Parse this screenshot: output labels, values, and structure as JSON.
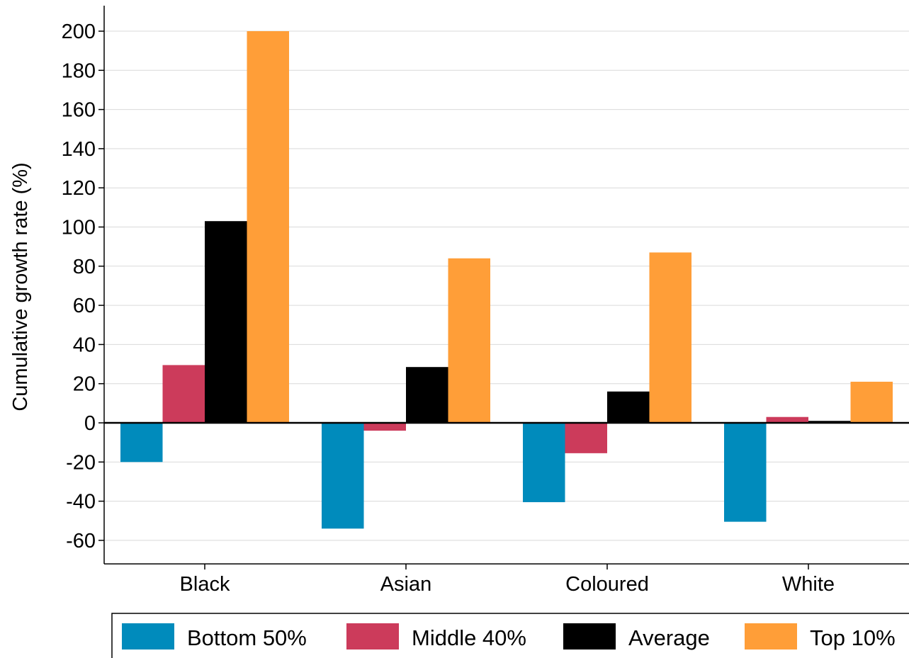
{
  "chart_data": {
    "type": "bar",
    "title": "",
    "xlabel": "",
    "ylabel": "Cumulative growth rate (%)",
    "categories": [
      "Black",
      "Asian",
      "Coloured",
      "White"
    ],
    "ylim": [
      -72,
      213
    ],
    "yticks": [
      200,
      180,
      160,
      140,
      120,
      100,
      80,
      60,
      40,
      20,
      0,
      -20,
      -40,
      -60
    ],
    "grid": true,
    "legend_position": "bottom",
    "series": [
      {
        "name": "Bottom 50%",
        "color": "#008bbc",
        "values": [
          -20,
          -54,
          -40.5,
          -50.5
        ]
      },
      {
        "name": "Middle 40%",
        "color": "#cc3b5b",
        "values": [
          29.5,
          -4,
          -15.5,
          3
        ]
      },
      {
        "name": "Average",
        "color": "#000000",
        "values": [
          103,
          28.5,
          16,
          1
        ]
      },
      {
        "name": "Top 10%",
        "color": "#ff9e38",
        "values": [
          200,
          84,
          87,
          21
        ]
      }
    ]
  }
}
